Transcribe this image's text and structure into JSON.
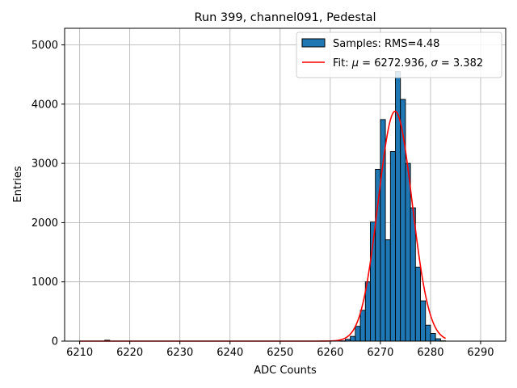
{
  "chart_data": {
    "type": "bar",
    "title": "Run 399, channel091, Pedestal",
    "xlabel": "ADC Counts",
    "ylabel": "Entries",
    "xlim": [
      6207,
      6295
    ],
    "ylim": [
      0,
      5280
    ],
    "xticks": [
      6210,
      6220,
      6230,
      6240,
      6250,
      6260,
      6270,
      6280,
      6290
    ],
    "yticks": [
      0,
      1000,
      2000,
      3000,
      4000,
      5000
    ],
    "grid": true,
    "legend_position": "top-right",
    "colors": {
      "bar": "#1f77b4",
      "bar_edge": "#000000",
      "fit": "#ff0000",
      "grid": "#b0b0b0"
    },
    "histogram": {
      "name": "Samples: RMS=4.48",
      "bin_width": 1,
      "bins": [
        {
          "x": 6215,
          "count": 15
        },
        {
          "x": 6262,
          "count": 5
        },
        {
          "x": 6263,
          "count": 30
        },
        {
          "x": 6264,
          "count": 80
        },
        {
          "x": 6265,
          "count": 250
        },
        {
          "x": 6266,
          "count": 520
        },
        {
          "x": 6267,
          "count": 1000
        },
        {
          "x": 6268,
          "count": 2010
        },
        {
          "x": 6269,
          "count": 2900
        },
        {
          "x": 6270,
          "count": 3740
        },
        {
          "x": 6271,
          "count": 1710
        },
        {
          "x": 6272,
          "count": 3200
        },
        {
          "x": 6273,
          "count": 4550
        },
        {
          "x": 6274,
          "count": 4080
        },
        {
          "x": 6275,
          "count": 3000
        },
        {
          "x": 6276,
          "count": 2250
        },
        {
          "x": 6277,
          "count": 1250
        },
        {
          "x": 6278,
          "count": 680
        },
        {
          "x": 6279,
          "count": 270
        },
        {
          "x": 6280,
          "count": 130
        },
        {
          "x": 6281,
          "count": 40
        },
        {
          "x": 6282,
          "count": 5
        }
      ]
    },
    "fit": {
      "name_prefix": "Fit: ",
      "name_mu": "μ",
      "name_mid": " = 6272.936, ",
      "name_sigma": "σ",
      "name_suffix": " = 3.382",
      "mu": 6272.936,
      "sigma": 3.382,
      "amplitude": 3880,
      "x_range": [
        6210,
        6283
      ]
    }
  }
}
